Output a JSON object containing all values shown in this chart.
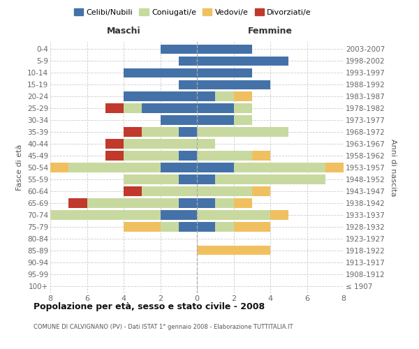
{
  "age_groups": [
    "100+",
    "95-99",
    "90-94",
    "85-89",
    "80-84",
    "75-79",
    "70-74",
    "65-69",
    "60-64",
    "55-59",
    "50-54",
    "45-49",
    "40-44",
    "35-39",
    "30-34",
    "25-29",
    "20-24",
    "15-19",
    "10-14",
    "5-9",
    "0-4"
  ],
  "birth_years": [
    "≤ 1907",
    "1908-1912",
    "1913-1917",
    "1918-1922",
    "1923-1927",
    "1928-1932",
    "1933-1937",
    "1938-1942",
    "1943-1947",
    "1948-1952",
    "1953-1957",
    "1958-1962",
    "1963-1967",
    "1968-1972",
    "1973-1977",
    "1978-1982",
    "1983-1987",
    "1988-1992",
    "1993-1997",
    "1998-2002",
    "2003-2007"
  ],
  "maschi": {
    "celibi": [
      0,
      0,
      0,
      0,
      0,
      1,
      2,
      1,
      0,
      1,
      2,
      1,
      0,
      1,
      2,
      3,
      4,
      1,
      4,
      1,
      2
    ],
    "coniugati": [
      0,
      0,
      0,
      0,
      0,
      1,
      6,
      5,
      3,
      3,
      5,
      3,
      4,
      2,
      0,
      1,
      0,
      0,
      0,
      0,
      0
    ],
    "vedovi": [
      0,
      0,
      0,
      0,
      0,
      2,
      0,
      0,
      0,
      0,
      1,
      0,
      0,
      0,
      0,
      0,
      0,
      0,
      0,
      0,
      0
    ],
    "divorziati": [
      0,
      0,
      0,
      0,
      0,
      0,
      0,
      1,
      1,
      0,
      0,
      1,
      1,
      1,
      0,
      1,
      0,
      0,
      0,
      0,
      0
    ]
  },
  "femmine": {
    "nubili": [
      0,
      0,
      0,
      0,
      0,
      1,
      0,
      1,
      0,
      1,
      2,
      0,
      0,
      0,
      2,
      2,
      1,
      4,
      3,
      5,
      3
    ],
    "coniugate": [
      0,
      0,
      0,
      0,
      0,
      1,
      4,
      1,
      3,
      6,
      5,
      3,
      1,
      5,
      1,
      1,
      1,
      0,
      0,
      0,
      0
    ],
    "vedove": [
      0,
      0,
      0,
      4,
      0,
      2,
      1,
      1,
      1,
      0,
      1,
      1,
      0,
      0,
      0,
      0,
      1,
      0,
      0,
      0,
      0
    ],
    "divorziate": [
      0,
      0,
      0,
      0,
      0,
      0,
      0,
      0,
      0,
      0,
      0,
      0,
      0,
      0,
      0,
      0,
      0,
      0,
      0,
      0,
      0
    ]
  },
  "colors": {
    "celibi_nubili": "#4472a8",
    "coniugati_e": "#c8d9a0",
    "vedovi_e": "#f0c060",
    "divorziati_e": "#c0392b"
  },
  "title": "Popolazione per età, sesso e stato civile - 2008",
  "subtitle": "COMUNE DI CALVIGNANO (PV) - Dati ISTAT 1° gennaio 2008 - Elaborazione TUTTITALIA.IT",
  "xlabel_left": "Maschi",
  "xlabel_right": "Femmine",
  "ylabel_left": "Fasce di età",
  "ylabel_right": "Anni di nascita",
  "xlim": 8,
  "legend_labels": [
    "Celibi/Nubili",
    "Coniugati/e",
    "Vedovi/e",
    "Divorziati/e"
  ]
}
